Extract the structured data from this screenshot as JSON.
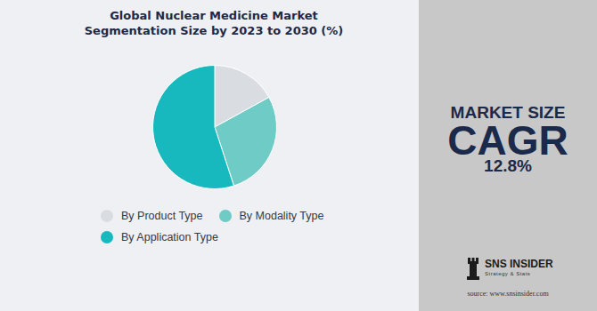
{
  "chart_data": {
    "type": "pie",
    "title": [
      "Global Nuclear Medicine Market",
      "Segmentation Size by 2023 to 2030 (%)"
    ],
    "categories": [
      "By Product Type",
      "By Modality Type",
      "By Application Type"
    ],
    "values": [
      17,
      28,
      55
    ],
    "colors": [
      "#d9dde2",
      "#6fcbc6",
      "#17b9bf"
    ],
    "legend": "bottom"
  },
  "panel": {
    "heading": "MARKET SIZE",
    "metric": "CAGR",
    "metric_value": "12.8%"
  },
  "logo": {
    "name": "SNS INSIDER",
    "tagline": "Strategy & Stats"
  },
  "source": "source: www.snsinsider.com"
}
